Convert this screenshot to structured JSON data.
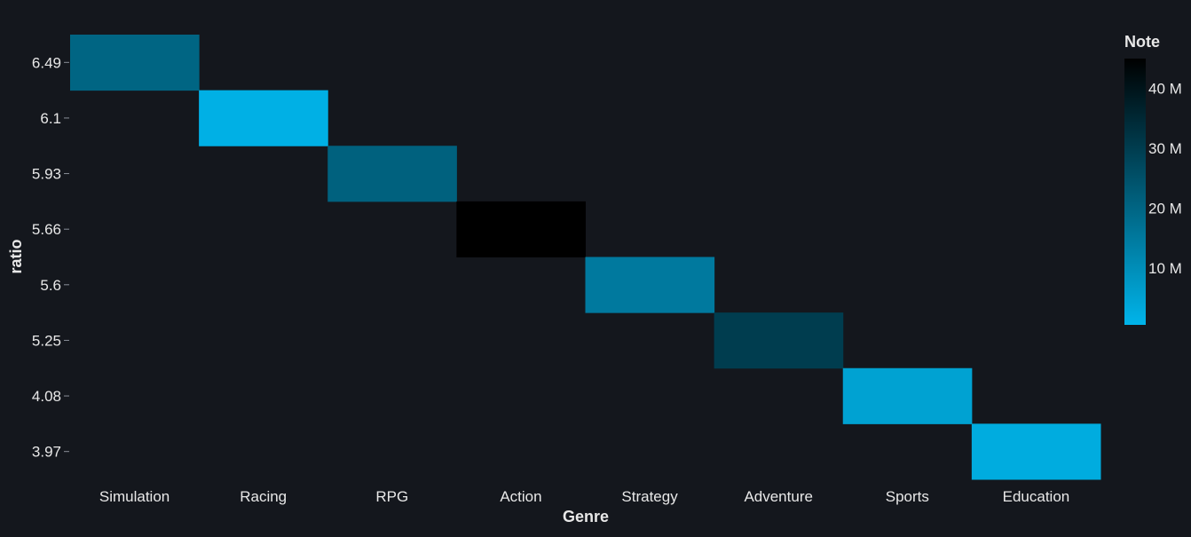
{
  "chart_data": {
    "type": "heatmap",
    "title": "",
    "xlabel": "Genre",
    "ylabel": "ratio",
    "x_categories": [
      "Simulation",
      "Racing",
      "RPG",
      "Action",
      "Strategy",
      "Adventure",
      "Sports",
      "Education"
    ],
    "y_categories": [
      "6.49",
      "6.1",
      "5.93",
      "5.66",
      "5.6",
      "5.25",
      "4.08",
      "3.97"
    ],
    "cells": [
      {
        "x": "Simulation",
        "y": "6.49",
        "value": 20000000
      },
      {
        "x": "Racing",
        "y": "6.1",
        "value": 1500000
      },
      {
        "x": "RPG",
        "y": "5.93",
        "value": 21000000
      },
      {
        "x": "Action",
        "y": "5.66",
        "value": 45000000
      },
      {
        "x": "Strategy",
        "y": "5.6",
        "value": 15000000
      },
      {
        "x": "Adventure",
        "y": "5.25",
        "value": 30000000
      },
      {
        "x": "Sports",
        "y": "4.08",
        "value": 5000000
      },
      {
        "x": "Education",
        "y": "3.97",
        "value": 2500000
      }
    ],
    "colorbar": {
      "title": "Note",
      "min": 500000,
      "max": 45000000,
      "ticks": [
        10000000,
        20000000,
        30000000,
        40000000
      ],
      "tick_labels": [
        "10 M",
        "20 M",
        "30 M",
        "40 M"
      ],
      "colorscale": [
        "#00b4ea",
        "#000000"
      ],
      "placement": "right"
    },
    "colors": {
      "background": "#14171d",
      "text": "#e8e8e8"
    },
    "grid": false
  }
}
